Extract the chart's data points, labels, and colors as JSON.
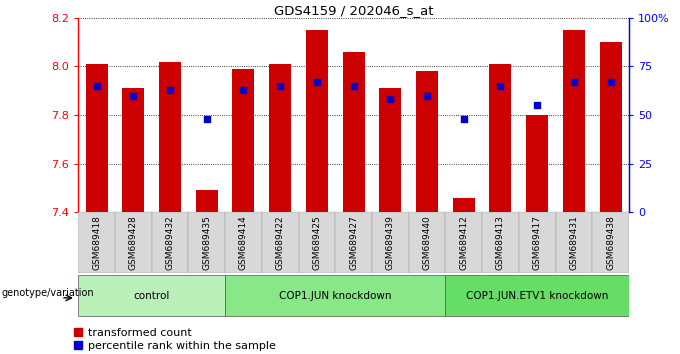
{
  "title": "GDS4159 / 202046_s_at",
  "samples": [
    "GSM689418",
    "GSM689428",
    "GSM689432",
    "GSM689435",
    "GSM689414",
    "GSM689422",
    "GSM689425",
    "GSM689427",
    "GSM689439",
    "GSM689440",
    "GSM689412",
    "GSM689413",
    "GSM689417",
    "GSM689431",
    "GSM689438"
  ],
  "red_values": [
    8.01,
    7.91,
    8.02,
    7.49,
    7.99,
    8.01,
    8.15,
    8.06,
    7.91,
    7.98,
    7.46,
    8.01,
    7.8,
    8.15,
    8.1
  ],
  "blue_percentiles": [
    65,
    60,
    63,
    48,
    63,
    65,
    67,
    65,
    58,
    60,
    48,
    65,
    55,
    67,
    67
  ],
  "ymin": 7.4,
  "ymax": 8.2,
  "yticks_left": [
    7.4,
    7.6,
    7.8,
    8.0,
    8.2
  ],
  "yticks_right": [
    0,
    25,
    50,
    75,
    100
  ],
  "ytick_right_labels": [
    "0",
    "25",
    "50",
    "75",
    "100%"
  ],
  "groups": [
    {
      "label": "control",
      "start": 0,
      "end": 4
    },
    {
      "label": "COP1.JUN knockdown",
      "start": 4,
      "end": 10
    },
    {
      "label": "COP1.JUN.ETV1 knockdown",
      "start": 10,
      "end": 15
    }
  ],
  "group_colors": [
    "#b8f0b8",
    "#88e888",
    "#66dd66"
  ],
  "bar_color": "#cc0000",
  "dot_color": "#0000cc",
  "legend_items": [
    "transformed count",
    "percentile rank within the sample"
  ],
  "genotype_label": "genotype/variation"
}
